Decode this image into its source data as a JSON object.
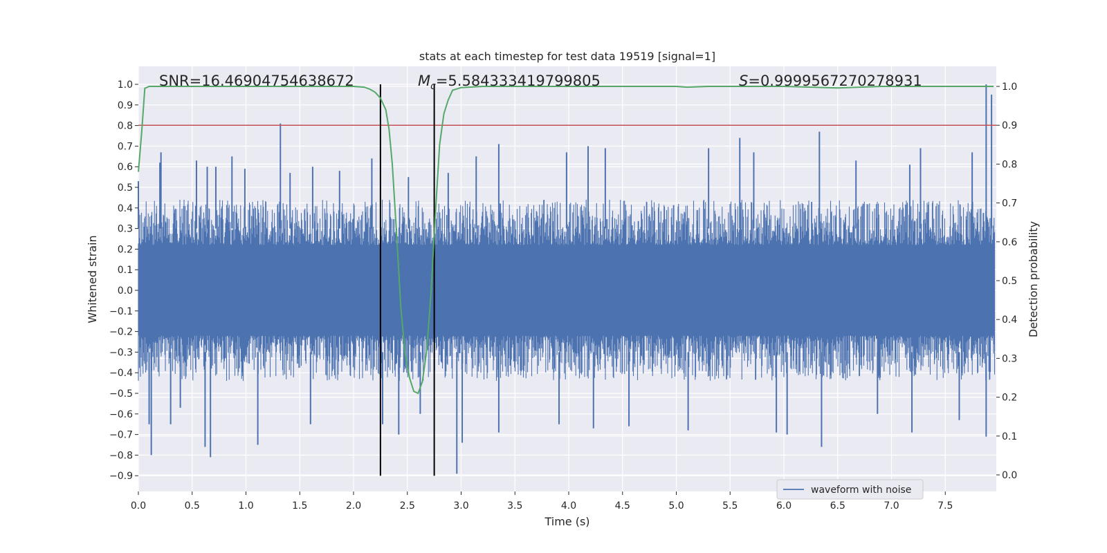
{
  "chart_data": {
    "type": "line",
    "title": "stats at each timestep for test data 19519 [signal=1]",
    "xlabel": "Time (s)",
    "ylabel": "Whitened strain",
    "y2label": "Detection probability",
    "xlim": [
      0.0,
      8.0
    ],
    "ylim": [
      -1.0,
      1.05
    ],
    "y2lim": [
      -0.05,
      1.05
    ],
    "xticks": [
      "0.0",
      "0.5",
      "1.0",
      "1.5",
      "2.0",
      "2.5",
      "3.0",
      "3.5",
      "4.0",
      "4.5",
      "5.0",
      "5.5",
      "6.0",
      "6.5",
      "7.0",
      "7.5"
    ],
    "yticks": [
      "−0.9",
      "−0.8",
      "−0.7",
      "−0.6",
      "−0.5",
      "−0.4",
      "−0.3",
      "−0.2",
      "−0.1",
      "0.0",
      "0.1",
      "0.2",
      "0.3",
      "0.4",
      "0.5",
      "0.6",
      "0.7",
      "0.8",
      "0.9",
      "1.0"
    ],
    "y2ticks": [
      "0.0",
      "0.1",
      "0.2",
      "0.3",
      "0.4",
      "0.5",
      "0.6",
      "0.7",
      "0.8",
      "0.9",
      "1.0"
    ],
    "annotations": {
      "snr": "SNR=16.46904754638672",
      "mc_symbol": "M",
      "mc_sub": "c",
      "mc_value": "=5.584333419799805",
      "s_symbol": "S",
      "s_value": "=0.9999567270278931"
    },
    "legend": {
      "label": "waveform with noise",
      "position": "lower-right"
    },
    "threshold": {
      "axis": "right",
      "value": 0.9,
      "color": "#c44e52"
    },
    "vlines": {
      "x": [
        2.25,
        2.75
      ],
      "y_from": -0.9,
      "y_to": 1.0,
      "color": "#000000"
    },
    "series": [
      {
        "name": "waveform with noise",
        "axis": "left",
        "color": "#4c72b0",
        "envelope_summary": {
          "typical_abs": 0.4,
          "peak_max": 1.0,
          "peak_min": -0.89
        },
        "spikes_up": [
          {
            "x": 0.0,
            "y": 0.53
          },
          {
            "x": 0.2,
            "y": 0.62
          },
          {
            "x": 0.21,
            "y": 0.67
          },
          {
            "x": 0.54,
            "y": 0.63
          },
          {
            "x": 0.64,
            "y": 0.6
          },
          {
            "x": 0.72,
            "y": 0.6
          },
          {
            "x": 0.87,
            "y": 0.65
          },
          {
            "x": 0.99,
            "y": 0.59
          },
          {
            "x": 1.32,
            "y": 0.81
          },
          {
            "x": 1.41,
            "y": 0.57
          },
          {
            "x": 1.62,
            "y": 0.6
          },
          {
            "x": 1.87,
            "y": 0.58
          },
          {
            "x": 2.17,
            "y": 0.64
          },
          {
            "x": 2.51,
            "y": 0.55
          },
          {
            "x": 2.88,
            "y": 0.57
          },
          {
            "x": 3.14,
            "y": 0.65
          },
          {
            "x": 3.35,
            "y": 0.71
          },
          {
            "x": 3.98,
            "y": 0.67
          },
          {
            "x": 4.18,
            "y": 0.7
          },
          {
            "x": 4.34,
            "y": 0.69
          },
          {
            "x": 5.3,
            "y": 0.69
          },
          {
            "x": 5.59,
            "y": 0.74
          },
          {
            "x": 5.72,
            "y": 0.67
          },
          {
            "x": 6.33,
            "y": 0.77
          },
          {
            "x": 6.67,
            "y": 0.63
          },
          {
            "x": 7.17,
            "y": 0.61
          },
          {
            "x": 7.27,
            "y": 0.69
          },
          {
            "x": 7.75,
            "y": 0.67
          },
          {
            "x": 7.88,
            "y": 1.0
          },
          {
            "x": 7.93,
            "y": 0.95
          }
        ],
        "spikes_down": [
          {
            "x": 0.1,
            "y": -0.65
          },
          {
            "x": 0.12,
            "y": -0.8
          },
          {
            "x": 0.3,
            "y": -0.65
          },
          {
            "x": 0.39,
            "y": -0.57
          },
          {
            "x": 0.62,
            "y": -0.76
          },
          {
            "x": 0.67,
            "y": -0.81
          },
          {
            "x": 1.11,
            "y": -0.75
          },
          {
            "x": 1.6,
            "y": -0.65
          },
          {
            "x": 2.27,
            "y": -0.65
          },
          {
            "x": 2.42,
            "y": -0.7
          },
          {
            "x": 2.62,
            "y": -0.6
          },
          {
            "x": 2.96,
            "y": -0.89
          },
          {
            "x": 3.01,
            "y": -0.74
          },
          {
            "x": 3.35,
            "y": -0.69
          },
          {
            "x": 3.91,
            "y": -0.65
          },
          {
            "x": 4.23,
            "y": -0.67
          },
          {
            "x": 4.56,
            "y": -0.66
          },
          {
            "x": 5.11,
            "y": -0.68
          },
          {
            "x": 5.93,
            "y": -0.69
          },
          {
            "x": 6.03,
            "y": -0.7
          },
          {
            "x": 6.35,
            "y": -0.76
          },
          {
            "x": 6.87,
            "y": -0.6
          },
          {
            "x": 7.19,
            "y": -0.69
          },
          {
            "x": 7.63,
            "y": -0.63
          },
          {
            "x": 7.88,
            "y": -0.71
          }
        ]
      },
      {
        "name": "Detection probability",
        "axis": "right",
        "color": "#55a868",
        "x": [
          0.0,
          0.03,
          0.06,
          0.1,
          0.3,
          0.6,
          1.0,
          1.5,
          1.8,
          2.0,
          2.1,
          2.15,
          2.2,
          2.25,
          2.3,
          2.33,
          2.36,
          2.4,
          2.44,
          2.48,
          2.52,
          2.56,
          2.6,
          2.64,
          2.68,
          2.72,
          2.76,
          2.8,
          2.84,
          2.88,
          2.92,
          3.0,
          3.2,
          3.6,
          4.0,
          4.5,
          5.0,
          5.1,
          5.3,
          5.6,
          6.0,
          6.5,
          6.9,
          7.3,
          7.6,
          7.95
        ],
        "y": [
          0.78,
          0.88,
          0.995,
          1.0,
          1.0,
          1.0,
          1.0,
          1.0,
          1.0,
          1.0,
          0.998,
          0.993,
          0.985,
          0.97,
          0.94,
          0.89,
          0.8,
          0.62,
          0.43,
          0.31,
          0.25,
          0.215,
          0.21,
          0.24,
          0.32,
          0.47,
          0.67,
          0.85,
          0.93,
          0.965,
          0.99,
          0.997,
          1.0,
          1.0,
          1.0,
          1.0,
          1.0,
          0.998,
          1.0,
          1.0,
          1.0,
          0.996,
          1.0,
          1.0,
          1.0,
          1.0
        ]
      }
    ]
  }
}
